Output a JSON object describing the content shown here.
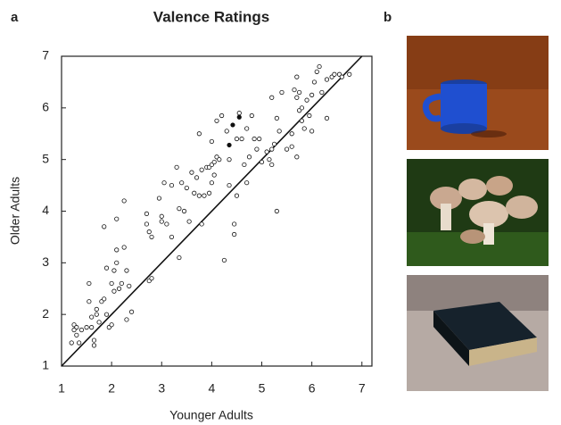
{
  "panel_labels": [
    "a",
    "b"
  ],
  "chart_data": {
    "type": "scatter",
    "title": "Valence Ratings",
    "x_label": "Younger Adults",
    "y_label": "Older Adults",
    "xlim": [
      1,
      7.2
    ],
    "ylim": [
      1,
      7
    ],
    "xticks": [
      1,
      2,
      3,
      4,
      5,
      6,
      7
    ],
    "yticks": [
      1,
      2,
      3,
      4,
      5,
      6,
      7
    ],
    "identity_line": true,
    "series": [
      {
        "color": "#111111",
        "filled": false,
        "x": [
          1.25,
          1.3,
          1.25,
          1.3,
          1.2,
          1.35,
          1.4,
          1.5,
          1.55,
          1.55,
          1.6,
          1.6,
          1.65,
          1.65,
          1.7,
          1.75,
          1.7,
          1.8,
          1.85,
          1.9,
          1.9,
          1.95,
          2.0,
          2.05,
          2.05,
          2.1,
          2.1,
          2.15,
          2.2,
          2.25,
          2.25,
          2.3,
          2.1,
          2.35,
          2.4,
          2.3,
          1.85,
          2.0,
          2.7,
          2.7,
          2.75,
          2.8,
          2.75,
          2.8,
          2.95,
          3.0,
          3.0,
          3.05,
          3.1,
          3.2,
          3.2,
          3.3,
          3.35,
          3.35,
          3.4,
          3.45,
          3.5,
          3.55,
          3.6,
          3.65,
          3.7,
          3.75,
          3.75,
          3.8,
          3.8,
          3.85,
          3.9,
          3.95,
          4.0,
          4.05,
          4.0,
          3.95,
          4.0,
          4.05,
          4.1,
          4.1,
          4.15,
          4.2,
          4.25,
          4.3,
          4.35,
          4.35,
          4.45,
          4.45,
          4.5,
          4.5,
          4.55,
          4.6,
          4.65,
          4.7,
          4.7,
          4.75,
          4.8,
          4.85,
          4.9,
          4.95,
          5.0,
          5.15,
          5.2,
          5.25,
          5.3,
          5.3,
          5.35,
          5.2,
          5.4,
          5.5,
          5.6,
          5.65,
          5.7,
          5.7,
          5.75,
          5.75,
          5.8,
          5.8,
          5.85,
          5.9,
          5.95,
          6.0,
          6.0,
          6.05,
          6.1,
          6.15,
          6.2,
          6.3,
          6.3,
          6.4,
          6.45,
          6.55,
          6.6,
          6.75,
          5.6,
          5.7,
          5.2,
          5.1
        ],
        "values": [
          1.8,
          1.75,
          1.7,
          1.6,
          1.45,
          1.45,
          1.7,
          1.75,
          2.6,
          2.25,
          1.95,
          1.75,
          1.5,
          1.4,
          2.0,
          1.85,
          2.1,
          2.25,
          2.3,
          2.9,
          2.0,
          1.75,
          2.6,
          2.45,
          2.85,
          3.85,
          3.0,
          2.5,
          2.6,
          4.2,
          3.3,
          2.85,
          3.25,
          2.55,
          2.05,
          1.9,
          3.7,
          1.8,
          3.95,
          3.75,
          3.6,
          3.5,
          2.65,
          2.7,
          4.25,
          3.9,
          3.8,
          4.55,
          3.75,
          4.5,
          3.5,
          4.85,
          3.1,
          4.05,
          4.55,
          4.0,
          4.45,
          3.8,
          4.75,
          4.35,
          4.65,
          4.3,
          5.5,
          4.8,
          3.75,
          4.3,
          4.85,
          4.85,
          4.9,
          4.95,
          4.55,
          4.35,
          5.35,
          4.7,
          5.75,
          5.05,
          5.0,
          5.85,
          3.05,
          5.55,
          5.0,
          4.5,
          3.75,
          3.55,
          4.3,
          5.4,
          5.9,
          5.4,
          4.9,
          5.6,
          4.55,
          5.05,
          5.85,
          5.4,
          5.2,
          5.4,
          4.95,
          5.0,
          5.2,
          5.3,
          4.0,
          5.8,
          5.55,
          6.2,
          6.3,
          5.2,
          5.5,
          6.35,
          6.6,
          6.2,
          6.3,
          5.95,
          6.0,
          5.75,
          5.6,
          6.15,
          5.85,
          6.25,
          5.55,
          6.5,
          6.7,
          6.8,
          6.3,
          5.8,
          6.55,
          6.6,
          6.65,
          6.65,
          6.6,
          6.65,
          5.25,
          5.05,
          4.9,
          5.15
        ]
      },
      {
        "color": "#111111",
        "filled": true,
        "x": [
          4.42,
          4.55,
          4.35
        ],
        "values": [
          5.67,
          5.82,
          5.28
        ]
      }
    ]
  }
}
